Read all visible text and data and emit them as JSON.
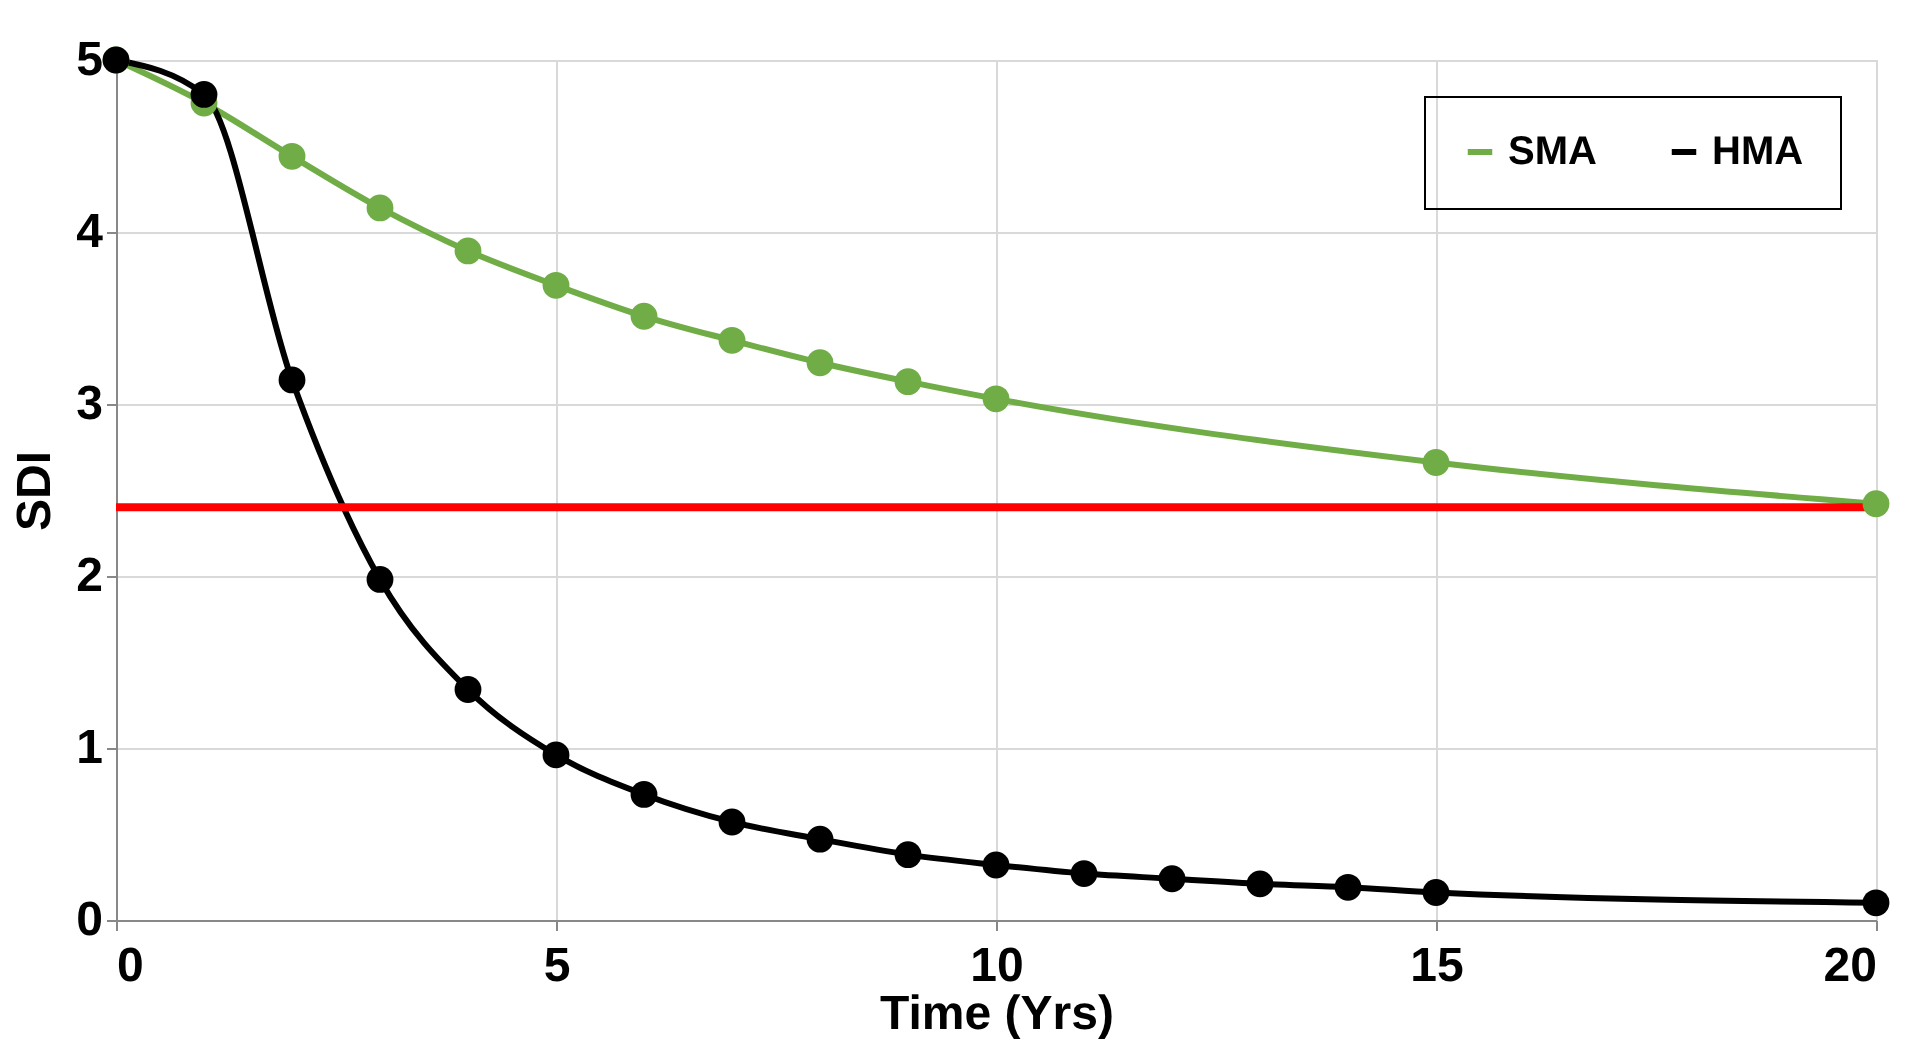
{
  "chart_data": {
    "type": "line",
    "xlabel": "Time (Yrs)",
    "ylabel": "SDI",
    "xlim": [
      0,
      20
    ],
    "xticks": [
      0,
      5,
      10,
      15,
      20
    ],
    "ylim": [
      0,
      5
    ],
    "yticks": [
      0,
      1,
      2,
      3,
      4,
      5
    ],
    "grid": true,
    "legend": "top right",
    "marker": "circle",
    "line_style": "solid",
    "series": [
      {
        "name": "SMA",
        "color": "#70ad47",
        "x": [
          0,
          1,
          2,
          3,
          4,
          5,
          6,
          7,
          8,
          9,
          10,
          15,
          20
        ],
        "values": [
          5,
          4.75,
          4.44,
          4.14,
          3.89,
          3.69,
          3.51,
          3.37,
          3.24,
          3.13,
          3.03,
          2.66,
          2.42
        ]
      },
      {
        "name": "HMA",
        "color": "#000000",
        "x": [
          0,
          1,
          2,
          3,
          4,
          5,
          6,
          7,
          8,
          9,
          10,
          11,
          12,
          13,
          14,
          15,
          20
        ],
        "values": [
          5,
          4.8,
          3.14,
          1.98,
          1.34,
          0.96,
          0.73,
          0.57,
          0.47,
          0.38,
          0.32,
          0.27,
          0.24,
          0.21,
          0.19,
          0.16,
          0.1
        ]
      }
    ],
    "ref_lines": [
      {
        "axis": "y",
        "value": 2.4,
        "color": "#ff0000"
      }
    ]
  }
}
